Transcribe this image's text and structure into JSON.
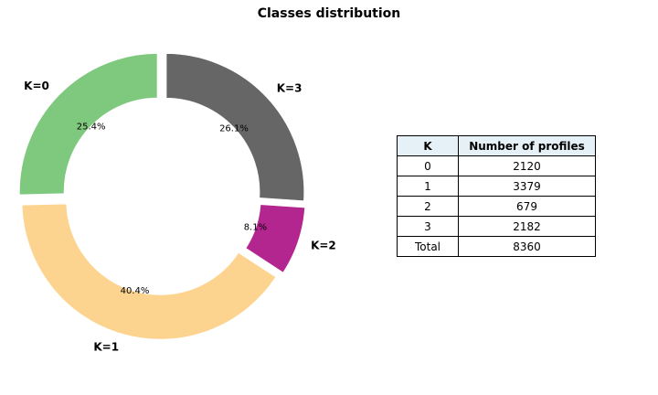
{
  "chart_data": [
    {
      "type": "pie",
      "title": "Classes distribution",
      "categories": [
        "K=0",
        "K=1",
        "K=2",
        "K=3"
      ],
      "values": [
        25.4,
        40.4,
        8.1,
        26.1
      ],
      "value_labels": [
        "25.4%",
        "40.4%",
        "8.1%",
        "26.1%"
      ],
      "colors": [
        "#7fc97f",
        "#fdd48f",
        "#b3258f",
        "#666666"
      ],
      "style": "donut with exploded slices"
    },
    {
      "type": "table",
      "columns": [
        "K",
        "Number of profiles"
      ],
      "rows": [
        [
          "0",
          "2120"
        ],
        [
          "1",
          "3379"
        ],
        [
          "2",
          "679"
        ],
        [
          "3",
          "2182"
        ],
        [
          "Total",
          "8360"
        ]
      ],
      "header_color": "#e6f0f7"
    }
  ]
}
